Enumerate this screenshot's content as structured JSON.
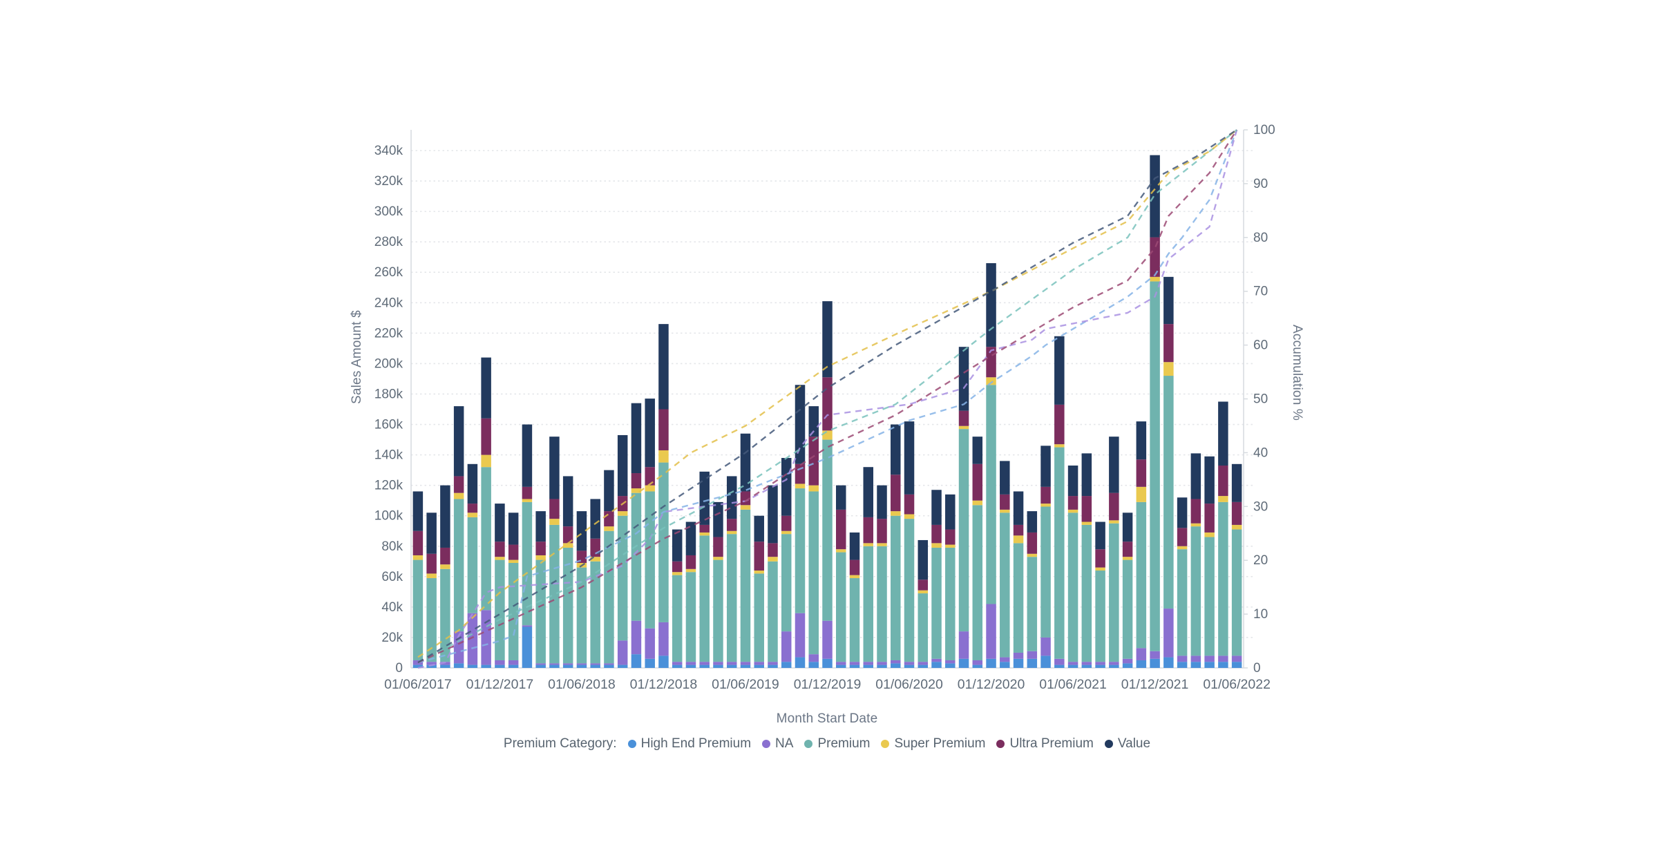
{
  "chart": {
    "left_axis_title": "Sales Amount $",
    "right_axis_title": "Accumulation %",
    "x_axis_title": "Month Start Date",
    "legend_title": "Premium Category:"
  },
  "legend": {
    "title": "Premium Category:",
    "items": [
      {
        "label": "High End Premium",
        "color": "#4a90d9"
      },
      {
        "label": "NA",
        "color": "#8a70d0"
      },
      {
        "label": "Premium",
        "color": "#6fb3ae"
      },
      {
        "label": "Super Premium",
        "color": "#eac94f"
      },
      {
        "label": "Ultra Premium",
        "color": "#7b2d5e"
      },
      {
        "label": "Value",
        "color": "#223a5e"
      }
    ]
  },
  "chart_data": {
    "type": "bar",
    "subtype": "stacked-bars-with-cumulative-percent-lines",
    "title": "",
    "xlabel": "Month Start Date",
    "ylabel": "Sales Amount $",
    "y2label": "Accumulation %",
    "ylim": [
      0,
      354000
    ],
    "y2lim": [
      0,
      100
    ],
    "grid": "horizontal-dotted",
    "legend_position": "bottom",
    "n_bars": 61,
    "x_first_month": "01/06/2017",
    "x_last_month": "01/06/2022",
    "x_tick_every_n_months": 6,
    "x_tick_labels": [
      "01/06/2017",
      "01/12/2017",
      "01/06/2018",
      "01/12/2018",
      "01/06/2019",
      "01/12/2019",
      "01/06/2020",
      "01/12/2020",
      "01/06/2021",
      "01/12/2021",
      "01/06/2022"
    ],
    "y_ticks_k": [
      0,
      20,
      40,
      60,
      80,
      100,
      120,
      140,
      160,
      180,
      200,
      220,
      240,
      260,
      280,
      300,
      320,
      340
    ],
    "y_tick_labels": [
      "0",
      "20k",
      "40k",
      "60k",
      "80k",
      "100k",
      "120k",
      "140k",
      "160k",
      "180k",
      "200k",
      "220k",
      "240k",
      "260k",
      "280k",
      "300k",
      "320k",
      "340k"
    ],
    "y2_ticks": [
      0,
      10,
      20,
      30,
      40,
      50,
      60,
      70,
      80,
      90,
      100
    ],
    "units": "thousands of $ per stacked segment value",
    "series": [
      {
        "name": "High End Premium",
        "color": "#4a90d9",
        "values": [
          2,
          2,
          2,
          3,
          2,
          2,
          2,
          2,
          27,
          2,
          2,
          2,
          2,
          2,
          2,
          2,
          9,
          6,
          8,
          2,
          2,
          2,
          2,
          2,
          2,
          2,
          2,
          4,
          7,
          4,
          6,
          2,
          2,
          2,
          2,
          3,
          2,
          2,
          4,
          3,
          6,
          2,
          6,
          4,
          6,
          6,
          8,
          2,
          2,
          2,
          2,
          2,
          3,
          5,
          6,
          7,
          4,
          4,
          4,
          4,
          4
        ]
      },
      {
        "name": "NA",
        "color": "#8a70d0",
        "values": [
          3,
          2,
          2,
          21,
          34,
          36,
          3,
          3,
          1,
          1,
          1,
          1,
          1,
          1,
          1,
          16,
          22,
          20,
          22,
          2,
          2,
          2,
          2,
          2,
          2,
          2,
          2,
          20,
          29,
          5,
          25,
          2,
          2,
          2,
          2,
          2,
          2,
          2,
          2,
          2,
          18,
          3,
          36,
          3,
          4,
          5,
          12,
          4,
          2,
          2,
          2,
          2,
          3,
          8,
          5,
          32,
          4,
          4,
          4,
          4,
          4
        ]
      },
      {
        "name": "Premium",
        "color": "#6fb3ae",
        "values": [
          66,
          55,
          61,
          87,
          63,
          94,
          66,
          64,
          81,
          68,
          91,
          76,
          63,
          67,
          87,
          82,
          84,
          90,
          105,
          57,
          59,
          83,
          67,
          84,
          100,
          58,
          66,
          64,
          82,
          107,
          119,
          72,
          55,
          76,
          76,
          95,
          94,
          45,
          73,
          74,
          133,
          102,
          144,
          95,
          72,
          62,
          86,
          139,
          98,
          90,
          60,
          91,
          65,
          96,
          243,
          153,
          70,
          85,
          78,
          101,
          83
        ]
      },
      {
        "name": "Super Premium",
        "color": "#eac94f",
        "values": [
          3,
          3,
          3,
          4,
          3,
          8,
          2,
          2,
          2,
          3,
          4,
          3,
          3,
          3,
          3,
          3,
          3,
          4,
          8,
          2,
          2,
          2,
          2,
          2,
          3,
          2,
          3,
          2,
          3,
          4,
          6,
          2,
          2,
          2,
          2,
          3,
          3,
          2,
          3,
          2,
          2,
          3,
          5,
          2,
          5,
          2,
          2,
          2,
          2,
          2,
          2,
          2,
          2,
          10,
          3,
          9,
          2,
          2,
          3,
          4,
          3
        ]
      },
      {
        "name": "Ultra Premium",
        "color": "#7b2d5e",
        "values": [
          16,
          13,
          11,
          11,
          6,
          24,
          10,
          10,
          8,
          9,
          13,
          11,
          8,
          12,
          10,
          10,
          10,
          12,
          27,
          7,
          9,
          5,
          13,
          8,
          9,
          19,
          9,
          10,
          13,
          32,
          35,
          26,
          10,
          17,
          16,
          24,
          13,
          7,
          12,
          10,
          10,
          24,
          20,
          10,
          7,
          14,
          11,
          26,
          9,
          17,
          12,
          18,
          10,
          18,
          26,
          25,
          12,
          16,
          19,
          20,
          15
        ]
      },
      {
        "name": "Value",
        "color": "#223a5e",
        "values": [
          26,
          27,
          41,
          46,
          26,
          40,
          25,
          21,
          41,
          20,
          41,
          33,
          26,
          26,
          27,
          40,
          46,
          45,
          56,
          21,
          22,
          35,
          23,
          28,
          38,
          17,
          38,
          38,
          52,
          20,
          50,
          16,
          18,
          33,
          22,
          33,
          48,
          26,
          23,
          23,
          42,
          18,
          55,
          22,
          22,
          14,
          27,
          45,
          20,
          28,
          18,
          37,
          19,
          25,
          54,
          31,
          20,
          30,
          31,
          42,
          25
        ]
      }
    ],
    "totals_k": [
      116,
      102,
      120,
      172,
      134,
      204,
      108,
      102,
      160,
      103,
      152,
      126,
      103,
      111,
      130,
      153,
      174,
      177,
      226,
      91,
      96,
      129,
      109,
      126,
      154,
      100,
      120,
      138,
      186,
      172,
      241,
      120,
      89,
      132,
      120,
      160,
      162,
      84,
      117,
      114,
      211,
      152,
      266,
      136,
      116,
      103,
      146,
      218,
      133,
      141,
      96,
      152,
      102,
      162,
      337,
      257,
      112,
      141,
      139,
      175,
      134
    ],
    "cumulative_lines": [
      {
        "name": "High End Premium",
        "color": "#85b3e6",
        "points": [
          [
            0,
            1
          ],
          [
            6,
            5
          ],
          [
            7,
            6
          ],
          [
            8,
            17
          ],
          [
            12,
            20
          ],
          [
            16,
            25
          ],
          [
            18,
            29
          ],
          [
            24,
            33
          ],
          [
            28,
            37
          ],
          [
            30,
            39
          ],
          [
            36,
            46
          ],
          [
            40,
            49
          ],
          [
            42,
            53
          ],
          [
            45,
            58
          ],
          [
            46,
            60
          ],
          [
            48,
            63
          ],
          [
            50,
            66
          ],
          [
            52,
            69
          ],
          [
            54,
            73
          ],
          [
            55,
            77
          ],
          [
            56,
            80
          ],
          [
            58,
            87
          ],
          [
            60,
            100
          ]
        ]
      },
      {
        "name": "NA",
        "color": "#a990e2",
        "points": [
          [
            0,
            0
          ],
          [
            2,
            1
          ],
          [
            3,
            6
          ],
          [
            5,
            14
          ],
          [
            6,
            15
          ],
          [
            12,
            16
          ],
          [
            15,
            19
          ],
          [
            17,
            24
          ],
          [
            18,
            29
          ],
          [
            24,
            31
          ],
          [
            27,
            35
          ],
          [
            28,
            41
          ],
          [
            30,
            47
          ],
          [
            36,
            49
          ],
          [
            40,
            52
          ],
          [
            42,
            59
          ],
          [
            45,
            61
          ],
          [
            46,
            63
          ],
          [
            48,
            64
          ],
          [
            52,
            66
          ],
          [
            54,
            69
          ],
          [
            55,
            76
          ],
          [
            56,
            78
          ],
          [
            58,
            82
          ],
          [
            60,
            100
          ]
        ]
      },
      {
        "name": "Premium",
        "color": "#79c2bc",
        "points": [
          [
            0,
            1
          ],
          [
            6,
            9
          ],
          [
            12,
            16
          ],
          [
            18,
            26
          ],
          [
            24,
            34
          ],
          [
            30,
            44
          ],
          [
            35,
            49
          ],
          [
            36,
            51
          ],
          [
            42,
            63
          ],
          [
            48,
            74
          ],
          [
            52,
            80
          ],
          [
            54,
            88
          ],
          [
            56,
            92
          ],
          [
            58,
            96
          ],
          [
            60,
            100
          ]
        ]
      },
      {
        "name": "Super Premium",
        "color": "#e3c04a",
        "points": [
          [
            0,
            2
          ],
          [
            3,
            7
          ],
          [
            6,
            14
          ],
          [
            12,
            25
          ],
          [
            18,
            36
          ],
          [
            20,
            40
          ],
          [
            24,
            45
          ],
          [
            30,
            56
          ],
          [
            35,
            62
          ],
          [
            42,
            70
          ],
          [
            48,
            78
          ],
          [
            52,
            83
          ],
          [
            53,
            86
          ],
          [
            54,
            89
          ],
          [
            55,
            92
          ],
          [
            58,
            96
          ],
          [
            60,
            100
          ]
        ]
      },
      {
        "name": "Ultra Premium",
        "color": "#9c4a74",
        "points": [
          [
            0,
            1
          ],
          [
            6,
            8
          ],
          [
            12,
            15
          ],
          [
            18,
            24
          ],
          [
            24,
            31
          ],
          [
            30,
            41
          ],
          [
            35,
            47
          ],
          [
            42,
            58
          ],
          [
            46,
            64
          ],
          [
            48,
            67
          ],
          [
            52,
            72
          ],
          [
            54,
            78
          ],
          [
            55,
            84
          ],
          [
            58,
            92
          ],
          [
            60,
            100
          ]
        ]
      },
      {
        "name": "Value",
        "color": "#44597a",
        "points": [
          [
            0,
            1
          ],
          [
            6,
            10
          ],
          [
            12,
            19
          ],
          [
            18,
            30
          ],
          [
            24,
            40
          ],
          [
            30,
            52
          ],
          [
            35,
            60
          ],
          [
            42,
            70
          ],
          [
            48,
            79
          ],
          [
            52,
            84
          ],
          [
            54,
            91
          ],
          [
            57,
            95
          ],
          [
            60,
            100
          ]
        ]
      }
    ]
  },
  "style": {
    "background": "#ffffff",
    "gridline_color": "#e4e6e9",
    "axis_line_color": "#d6dadf",
    "tick_text_color": "#5f6b78",
    "axis_title_color": "#6b7686"
  }
}
